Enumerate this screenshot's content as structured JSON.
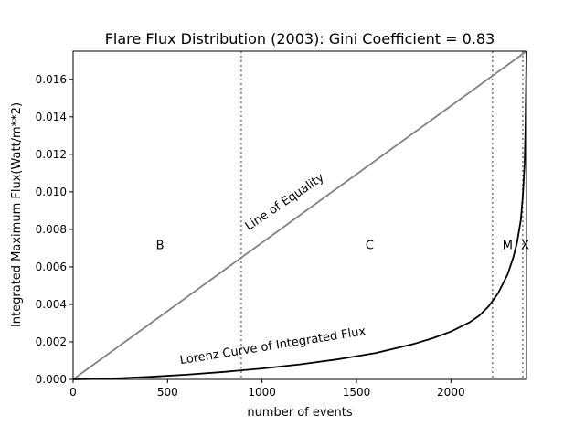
{
  "chart_data": {
    "type": "line",
    "title": "Flare Flux Distribution (2003): Gini Coefficient = 0.83",
    "xlabel": "number of events",
    "ylabel": "Integrated Maximum Flux(Watt/m**2)",
    "xlim": [
      0,
      2400
    ],
    "ylim": [
      0,
      0.0175
    ],
    "xticks": [
      0,
      500,
      1000,
      1500,
      2000
    ],
    "xtick_labels": [
      "0",
      "500",
      "1000",
      "1500",
      "2000"
    ],
    "yticks": [
      0,
      0.002,
      0.004,
      0.006,
      0.008,
      0.01,
      0.012,
      0.014,
      0.016
    ],
    "ytick_labels": [
      "0.000",
      "0.002",
      "0.004",
      "0.006",
      "0.008",
      "0.010",
      "0.012",
      "0.014",
      "0.016"
    ],
    "grid": false,
    "series": [
      {
        "name": "Line of Equality",
        "color": "#808080",
        "x": [
          0,
          2400
        ],
        "y": [
          0,
          0.0175
        ]
      },
      {
        "name": "Lorenz Curve of Integrated Flux",
        "color": "#000000",
        "x": [
          0,
          200,
          400,
          600,
          800,
          1000,
          1200,
          1400,
          1600,
          1800,
          1900,
          2000,
          2100,
          2150,
          2200,
          2250,
          2300,
          2330,
          2350,
          2370,
          2380,
          2390,
          2395,
          2400
        ],
        "y": [
          0,
          4e-05,
          0.00013,
          0.00025,
          0.0004,
          0.00058,
          0.0008,
          0.00107,
          0.0014,
          0.00188,
          0.00218,
          0.00255,
          0.00305,
          0.0034,
          0.0039,
          0.0046,
          0.0056,
          0.0065,
          0.0073,
          0.0085,
          0.0097,
          0.0115,
          0.0135,
          0.0175
        ]
      }
    ],
    "class_boundaries": [
      {
        "x": 890,
        "color": "#808080"
      },
      {
        "x": 2220,
        "color": "#808080"
      },
      {
        "x": 2380,
        "color": "#808080"
      }
    ],
    "class_labels": [
      {
        "label": "B",
        "x": 460,
        "y": 0.0072
      },
      {
        "label": "C",
        "x": 1570,
        "y": 0.0072
      },
      {
        "label": "M",
        "x": 2300,
        "y": 0.0072
      },
      {
        "label": "X",
        "x": 2393,
        "y": 0.0072
      }
    ],
    "annotations": [
      {
        "text": "Line of Equality",
        "x": 1130,
        "y": 0.0093,
        "angle": -34
      },
      {
        "text": "Lorenz Curve of Integrated Flux",
        "x": 1060,
        "y": 0.0016,
        "angle": -9
      }
    ]
  }
}
